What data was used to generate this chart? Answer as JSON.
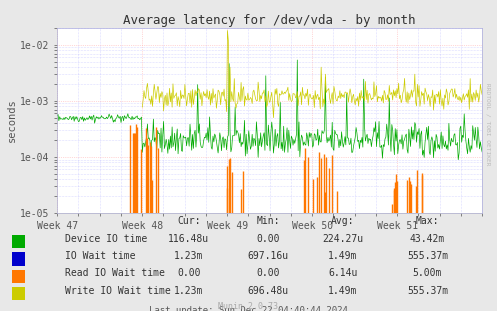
{
  "title": "Average latency for /dev/vda - by month",
  "ylabel": "seconds",
  "xlabel_ticks": [
    "Week 47",
    "Week 48",
    "Week 49",
    "Week 50",
    "Week 51"
  ],
  "xlabel_tick_positions": [
    0.0,
    0.2,
    0.4,
    0.6,
    0.8
  ],
  "background_color": "#e8e8e8",
  "plot_bg_color": "#ffffff",
  "major_grid_color": "#ffaaaa",
  "minor_grid_color": "#aaaaff",
  "legend": [
    {
      "label": "Device IO time",
      "color": "#00aa00"
    },
    {
      "label": "IO Wait time",
      "color": "#0000cc"
    },
    {
      "label": "Read IO Wait time",
      "color": "#ff7700"
    },
    {
      "label": "Write IO Wait time",
      "color": "#cccc00"
    }
  ],
  "stats": {
    "headers": [
      "Cur:",
      "Min:",
      "Avg:",
      "Max:"
    ],
    "rows": [
      [
        "Device IO time",
        "116.48u",
        "0.00",
        "224.27u",
        "43.42m"
      ],
      [
        "IO Wait time",
        "1.23m",
        "697.16u",
        "1.49m",
        "555.37m"
      ],
      [
        "Read IO Wait time",
        "0.00",
        "0.00",
        "6.14u",
        "5.00m"
      ],
      [
        "Write IO Wait time",
        "1.23m",
        "696.48u",
        "1.49m",
        "555.37m"
      ]
    ]
  },
  "footer": "Last update: Sun Dec 22 04:40:44 2024",
  "munin_version": "Munin 2.0.73",
  "watermark": "RRDTOOL / TOBI OETIKER"
}
